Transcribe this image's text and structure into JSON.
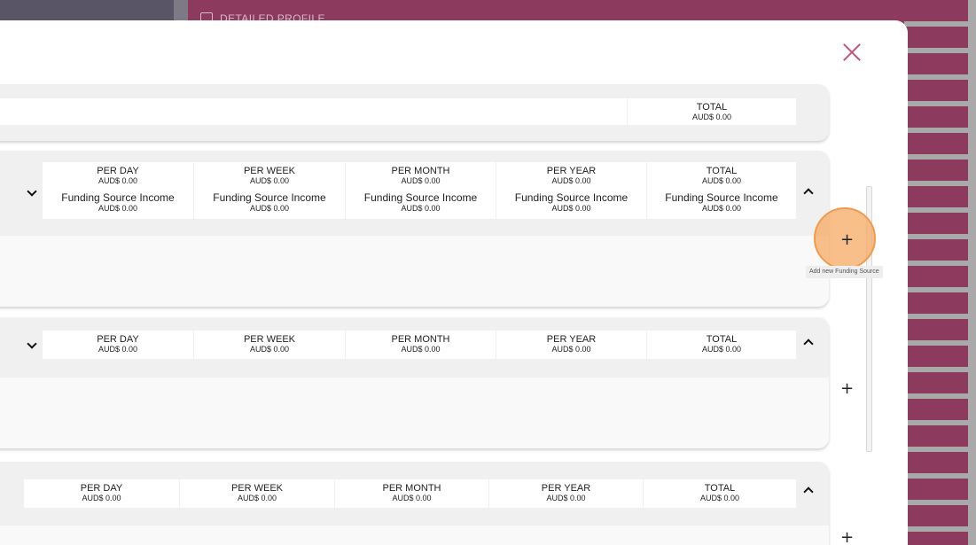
{
  "background": {
    "profile_label": "DETAILED PROFILE"
  },
  "modal": {
    "summary_panel": {
      "total_label": "TOTAL",
      "total_value": "AUD$ 0.00"
    },
    "panels": [
      {
        "columns": [
          {
            "label": "PER DAY",
            "value": "AUD$ 0.00",
            "source_label": "Funding Source Income",
            "source_value": "AUD$ 0.00"
          },
          {
            "label": "PER WEEK",
            "value": "AUD$ 0.00",
            "source_label": "Funding Source Income",
            "source_value": "AUD$ 0.00"
          },
          {
            "label": "PER MONTH",
            "value": "AUD$ 0.00",
            "source_label": "Funding Source Income",
            "source_value": "AUD$ 0.00"
          },
          {
            "label": "PER YEAR",
            "value": "AUD$ 0.00",
            "source_label": "Funding Source Income",
            "source_value": "AUD$ 0.00"
          },
          {
            "label": "TOTAL",
            "value": "AUD$ 0.00",
            "source_label": "Funding Source Income",
            "source_value": "AUD$ 0.00"
          }
        ],
        "add_tooltip": "Add new Funding Source"
      },
      {
        "columns": [
          {
            "label": "PER DAY",
            "value": "AUD$ 0.00"
          },
          {
            "label": "PER WEEK",
            "value": "AUD$ 0.00"
          },
          {
            "label": "PER MONTH",
            "value": "AUD$ 0.00"
          },
          {
            "label": "PER YEAR",
            "value": "AUD$ 0.00"
          },
          {
            "label": "TOTAL",
            "value": "AUD$ 0.00"
          }
        ]
      },
      {
        "columns": [
          {
            "label": "PER DAY",
            "value": "AUD$ 0.00"
          },
          {
            "label": "PER WEEK",
            "value": "AUD$ 0.00"
          },
          {
            "label": "PER MONTH",
            "value": "AUD$ 0.00"
          },
          {
            "label": "PER YEAR",
            "value": "AUD$ 0.00"
          },
          {
            "label": "TOTAL",
            "value": "AUD$ 0.00"
          }
        ]
      }
    ],
    "icons": {
      "close": "close-icon",
      "expand": "chevron-down-icon",
      "collapse": "chevron-up-icon",
      "add": "plus-icon"
    }
  },
  "colors": {
    "accent": "#c7527d",
    "background_app": "#8c3a5e",
    "highlight": "#f7aa64"
  }
}
